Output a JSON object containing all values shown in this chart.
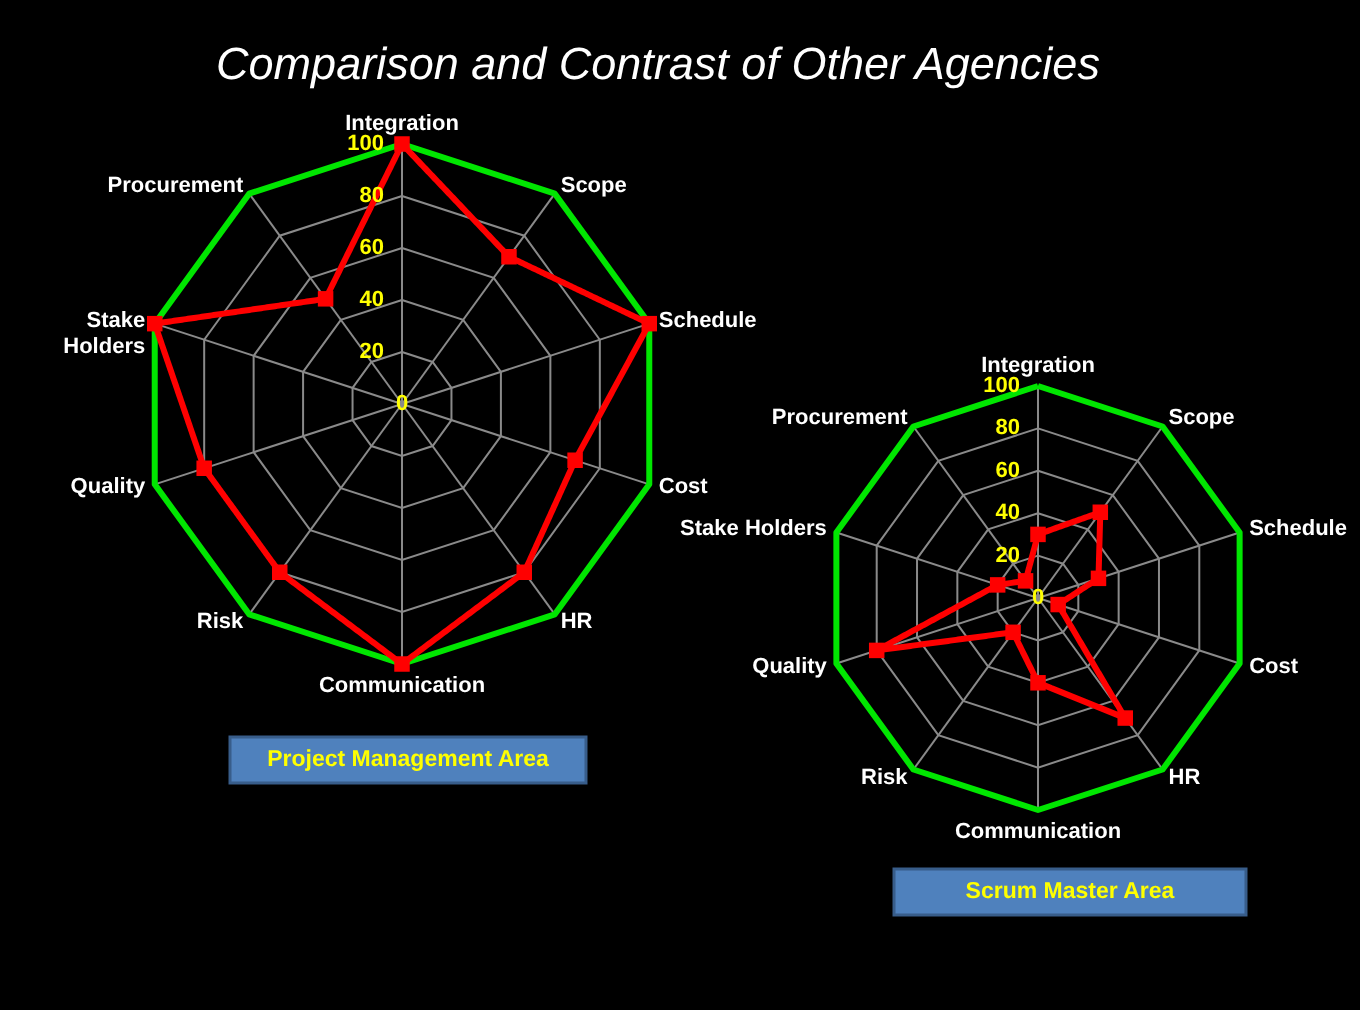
{
  "chart_data": [
    {
      "type": "radar",
      "title": "Comparison and Contrast of Other Agencies",
      "categories": [
        "Integration",
        "Scope",
        "Schedule",
        "Cost",
        "HR",
        "Communication",
        "Risk",
        "Quality",
        "Stake Holders",
        "Procurement"
      ],
      "series": [
        {
          "color": "#ff0000",
          "marker": "square",
          "values": [
            100,
            70,
            100,
            70,
            80,
            100,
            80,
            80,
            100,
            50
          ]
        }
      ],
      "ylim": [
        0,
        100
      ],
      "yticks": [
        0,
        20,
        40,
        60,
        80,
        100
      ],
      "grid": true,
      "annotations": [
        "Project Management Area"
      ]
    },
    {
      "type": "radar",
      "categories": [
        "Integration",
        "Scope",
        "Schedule",
        "Cost",
        "HR",
        "Communication",
        "Risk",
        "Quality",
        "Stake Holders",
        "Procurement"
      ],
      "series": [
        {
          "color": "#ff0000",
          "marker": "square",
          "values": [
            30,
            50,
            30,
            10,
            70,
            40,
            20,
            80,
            20,
            10
          ]
        }
      ],
      "ylim": [
        0,
        100
      ],
      "yticks": [
        0,
        20,
        40,
        60,
        80,
        100
      ],
      "grid": true,
      "annotations": [
        "Scrum Master Area"
      ]
    }
  ]
}
